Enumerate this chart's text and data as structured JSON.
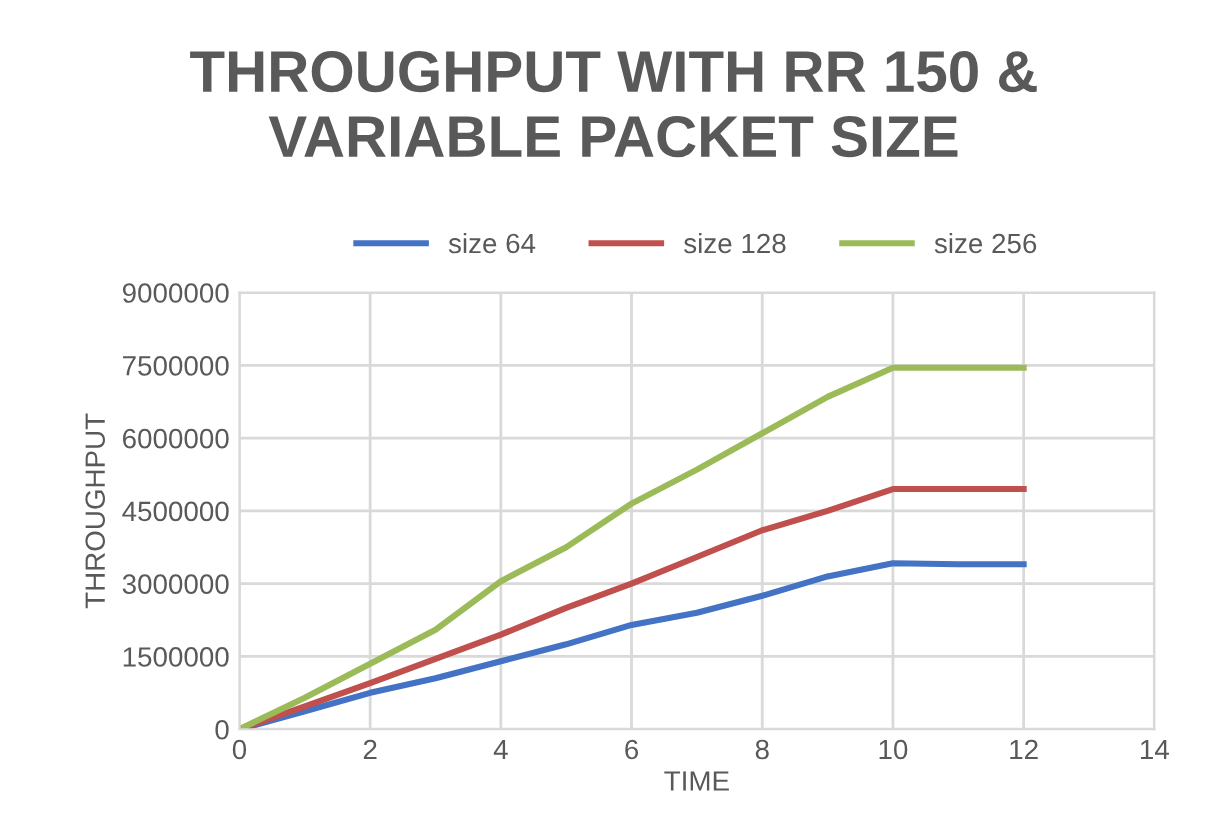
{
  "chart_data": {
    "type": "line",
    "title": "THROUGHPUT WITH RR 150 &\nVARIABLE PACKET SIZE",
    "xlabel": "TIME",
    "ylabel": "THROUGHPUT",
    "x": [
      0,
      1,
      2,
      3,
      4,
      5,
      6,
      7,
      8,
      9,
      10,
      11,
      12
    ],
    "series": [
      {
        "name": "size 64",
        "color": "#4472c4",
        "values": [
          0,
          370000,
          750000,
          1050000,
          1400000,
          1750000,
          2150000,
          2400000,
          2750000,
          3150000,
          3420000,
          3400000,
          3400000
        ]
      },
      {
        "name": "size 128",
        "color": "#c0504d",
        "values": [
          0,
          470000,
          950000,
          1450000,
          1950000,
          2500000,
          3000000,
          3550000,
          4100000,
          4500000,
          4950000,
          4950000,
          4950000
        ]
      },
      {
        "name": "size 256",
        "color": "#9bbb59",
        "values": [
          0,
          650000,
          1350000,
          2050000,
          3050000,
          3750000,
          4650000,
          5350000,
          6100000,
          6850000,
          7450000,
          7450000,
          7450000
        ]
      }
    ],
    "xlim": [
      0,
      14
    ],
    "xticks": [
      0,
      2,
      4,
      6,
      8,
      10,
      12,
      14
    ],
    "ylim": [
      0,
      9000000
    ],
    "yticks": [
      0,
      1500000,
      3000000,
      4500000,
      6000000,
      7500000,
      9000000
    ],
    "grid": true,
    "legend": "top",
    "marker": "none",
    "line_style": "solid"
  }
}
